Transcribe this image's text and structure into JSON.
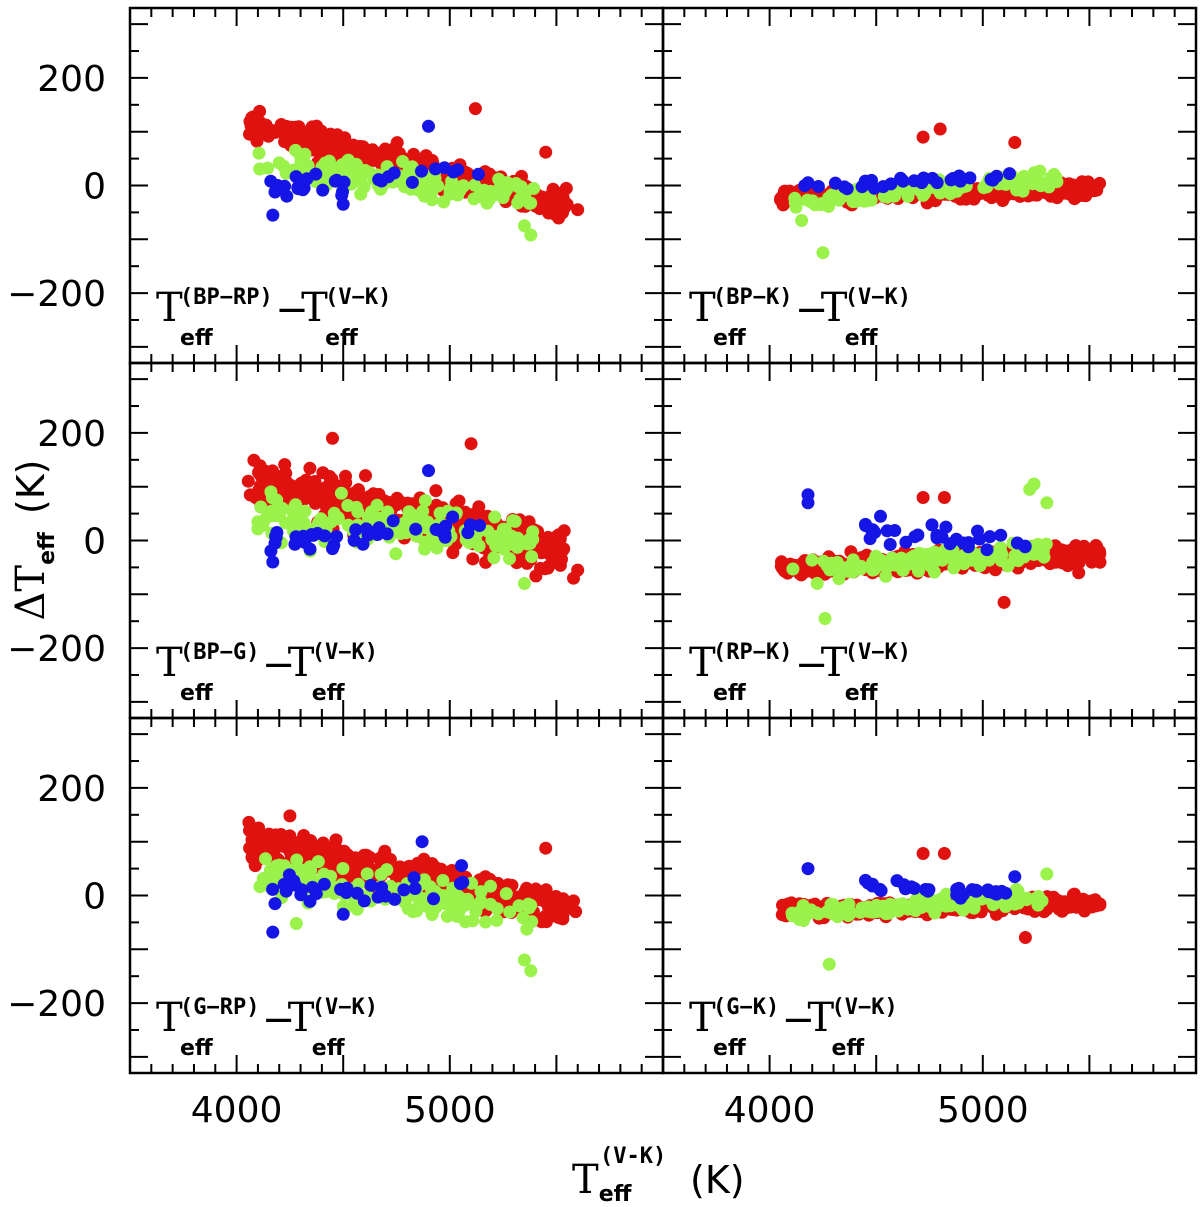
{
  "chart_data": {
    "type": "scatter",
    "layout": "3x2 grid of panels sharing axes",
    "xlabel": {
      "symbol": "T",
      "sub": "eff",
      "sup": "(V-K)",
      "unit": "(K)"
    },
    "ylabel": {
      "symbol": "ΔT",
      "sub": "eff",
      "unit": "(K)"
    },
    "xlim": [
      3500,
      6000
    ],
    "ylim": [
      -330,
      330
    ],
    "x_ticks": [
      4000,
      5000
    ],
    "x_tick_labels": [
      "4000",
      "5000"
    ],
    "y_ticks": [
      -200,
      0,
      200
    ],
    "y_tick_labels": [
      "−200",
      "0",
      "200"
    ],
    "series_colors": {
      "red": "#e0120f",
      "green": "#9af24a",
      "blue": "#1515e6"
    },
    "panels": [
      {
        "id": "bp-rp",
        "label": {
          "a": "T",
          "a_sub": "eff",
          "a_sup": "(BP−RP)",
          "sep": "−",
          "b": "T",
          "b_sub": "eff",
          "b_sup": "(V−K)"
        },
        "trends": {
          "red": {
            "n": 360,
            "x_range": [
              4050,
              5550
            ],
            "y_start": 112,
            "y_end": -35,
            "spread": 20
          },
          "green": {
            "n": 130,
            "x_range": [
              4100,
              5400
            ],
            "y_start": 45,
            "y_end": -25,
            "spread": 22
          },
          "blue": {
            "n": 30,
            "x_range": [
              4150,
              5150
            ],
            "y_start": -5,
            "y_end": 30,
            "spread": 16
          }
        },
        "outliers": {
          "red": [
            [
              5120,
              143
            ],
            [
              5450,
              62
            ],
            [
              5550,
              -35
            ],
            [
              5600,
              -45
            ]
          ],
          "green": [
            [
              5380,
              -92
            ],
            [
              5350,
              -75
            ],
            [
              4200,
              42
            ]
          ],
          "blue": [
            [
              4170,
              -55
            ],
            [
              4180,
              -12
            ],
            [
              4500,
              -35
            ],
            [
              4900,
              110
            ]
          ]
        }
      },
      {
        "id": "bp-k",
        "label": {
          "a": "T",
          "a_sub": "eff",
          "a_sup": "(BP−K)",
          "sep": "−",
          "b": "T",
          "b_sub": "eff",
          "b_sup": "(V−K)"
        },
        "trends": {
          "red": {
            "n": 300,
            "x_range": [
              4050,
              5550
            ],
            "y_start": -22,
            "y_end": -5,
            "spread": 10
          },
          "green": {
            "n": 120,
            "x_range": [
              4100,
              5350
            ],
            "y_start": -30,
            "y_end": 12,
            "spread": 11
          },
          "blue": {
            "n": 30,
            "x_range": [
              4150,
              5150
            ],
            "y_start": -2,
            "y_end": 18,
            "spread": 9
          }
        },
        "outliers": {
          "red": [
            [
              4720,
              90
            ],
            [
              4800,
              105
            ],
            [
              5150,
              80
            ]
          ],
          "green": [
            [
              4250,
              -125
            ],
            [
              4150,
              -65
            ]
          ],
          "blue": [
            [
              4180,
              5
            ]
          ]
        }
      },
      {
        "id": "bp-g",
        "label": {
          "a": "T",
          "a_sub": "eff",
          "a_sup": "(BP−G)",
          "sep": "−",
          "b": "T",
          "b_sub": "eff",
          "b_sup": "(V−K)"
        },
        "trends": {
          "red": {
            "n": 420,
            "x_range": [
              4050,
              5550
            ],
            "y_start": 112,
            "y_end": -20,
            "spread": 30
          },
          "green": {
            "n": 150,
            "x_range": [
              4100,
              5400
            ],
            "y_start": 45,
            "y_end": 5,
            "spread": 28
          },
          "blue": {
            "n": 35,
            "x_range": [
              4150,
              5150
            ],
            "y_start": -5,
            "y_end": 25,
            "spread": 18
          }
        },
        "outliers": {
          "red": [
            [
              4450,
              190
            ],
            [
              5100,
              180
            ],
            [
              5600,
              -55
            ],
            [
              5580,
              -70
            ]
          ],
          "green": [
            [
              5350,
              -80
            ],
            [
              4100,
              35
            ]
          ],
          "blue": [
            [
              4170,
              -40
            ],
            [
              4180,
              -5
            ],
            [
              4450,
              -15
            ],
            [
              4900,
              130
            ]
          ]
        }
      },
      {
        "id": "rp-k",
        "label": {
          "a": "T",
          "a_sub": "eff",
          "a_sup": "(RP−K)",
          "sep": "−",
          "b": "T",
          "b_sub": "eff",
          "b_sup": "(V−K)"
        },
        "trends": {
          "red": {
            "n": 360,
            "x_range": [
              4050,
              5550
            ],
            "y_start": -52,
            "y_end": -25,
            "spread": 13
          },
          "green": {
            "n": 140,
            "x_range": [
              4100,
              5300
            ],
            "y_start": -58,
            "y_end": -18,
            "spread": 13
          },
          "blue": {
            "n": 30,
            "x_range": [
              4400,
              5200
            ],
            "y_start": 15,
            "y_end": 0,
            "spread": 16
          }
        },
        "outliers": {
          "red": [
            [
              4720,
              80
            ],
            [
              4820,
              80
            ],
            [
              5100,
              -115
            ],
            [
              5450,
              -60
            ]
          ],
          "green": [
            [
              5220,
              95
            ],
            [
              5240,
              105
            ],
            [
              5300,
              70
            ],
            [
              4260,
              -145
            ]
          ],
          "blue": [
            [
              4180,
              85
            ],
            [
              4180,
              70
            ],
            [
              4450,
              30
            ],
            [
              4520,
              45
            ]
          ]
        }
      },
      {
        "id": "g-rp",
        "label": {
          "a": "T",
          "a_sub": "eff",
          "a_sup": "(G−RP)",
          "sep": "−",
          "b": "T",
          "b_sub": "eff",
          "b_sup": "(V−K)"
        },
        "trends": {
          "red": {
            "n": 380,
            "x_range": [
              4050,
              5550
            ],
            "y_start": 98,
            "y_end": -30,
            "spread": 24
          },
          "green": {
            "n": 140,
            "x_range": [
              4100,
              5400
            ],
            "y_start": 40,
            "y_end": -30,
            "spread": 26
          },
          "blue": {
            "n": 30,
            "x_range": [
              4150,
              5150
            ],
            "y_start": 10,
            "y_end": 25,
            "spread": 18
          }
        },
        "outliers": {
          "red": [
            [
              4250,
              148
            ],
            [
              5450,
              88
            ],
            [
              5580,
              -10
            ],
            [
              5590,
              -30
            ]
          ],
          "green": [
            [
              5380,
              -140
            ],
            [
              5350,
              -120
            ],
            [
              4280,
              -52
            ]
          ],
          "blue": [
            [
              4170,
              -68
            ],
            [
              4180,
              -15
            ],
            [
              4500,
              -35
            ],
            [
              4870,
              100
            ]
          ]
        }
      },
      {
        "id": "g-k",
        "label": {
          "a": "T",
          "a_sub": "eff",
          "a_sup": "(G−K)",
          "sep": "−",
          "b": "T",
          "b_sub": "eff",
          "b_sup": "(V−K)"
        },
        "trends": {
          "red": {
            "n": 300,
            "x_range": [
              4050,
              5550
            ],
            "y_start": -28,
            "y_end": -15,
            "spread": 10
          },
          "green": {
            "n": 120,
            "x_range": [
              4100,
              5350
            ],
            "y_start": -35,
            "y_end": 0,
            "spread": 11
          },
          "blue": {
            "n": 30,
            "x_range": [
              4450,
              5150
            ],
            "y_start": 18,
            "y_end": 5,
            "spread": 8
          }
        },
        "outliers": {
          "red": [
            [
              4720,
              78
            ],
            [
              4820,
              78
            ],
            [
              5200,
              -78
            ]
          ],
          "green": [
            [
              4280,
              -128
            ],
            [
              5300,
              40
            ]
          ],
          "blue": [
            [
              4180,
              50
            ],
            [
              4450,
              28
            ],
            [
              5150,
              35
            ]
          ]
        }
      }
    ]
  }
}
